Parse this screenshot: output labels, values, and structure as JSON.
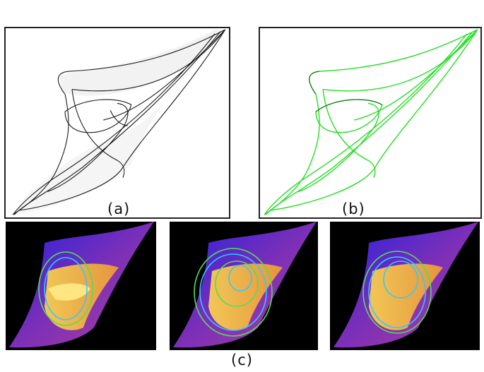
{
  "figure": {
    "captions": {
      "a": "(a)",
      "b": "(b)",
      "c": "(c)"
    },
    "colors": {
      "outline": "#1a1a1a",
      "green_curve": "#22dd22",
      "render_bg": "#000000",
      "surface_blue": "#2020e0",
      "surface_purple": "#7b2fb8",
      "surface_yellow": "#ffd84a",
      "contour_green": "#55dd55",
      "contour_cyan": "#33c8ff"
    }
  }
}
